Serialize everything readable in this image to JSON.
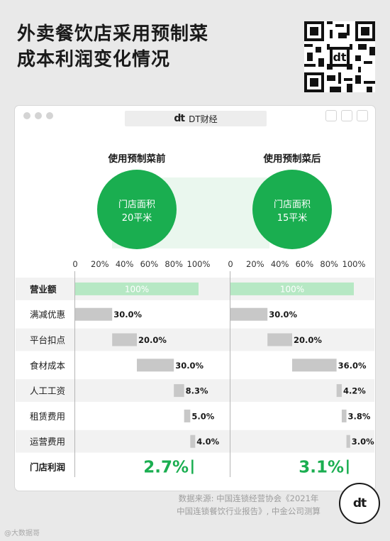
{
  "title_line1": "外卖餐饮店采用预制菜",
  "title_line2": "成本利润变化情况",
  "window_title": "DT财经",
  "logo_text": "dt",
  "source_line1": "数据来源: 中国连锁经营协会《2021年",
  "source_line2": "中国连锁餐饮行业报告》, 中金公司测算",
  "watermark": "@大数据哥",
  "colors": {
    "green": "#1aae50",
    "green_light": "#b6e8c4",
    "gray_bar": "#c8c8c8",
    "accent_strong": "#1aae50"
  },
  "chart_data": {
    "type": "bar",
    "orientation": "horizontal-waterfall",
    "categories": [
      "营业额",
      "满减优惠",
      "平台扣点",
      "食材成本",
      "人工工资",
      "租赁费用",
      "运营费用",
      "门店利润"
    ],
    "x_ticks": [
      "0",
      "20%",
      "40%",
      "60%",
      "80%",
      "100%"
    ],
    "xlim": [
      0,
      100
    ],
    "panels": [
      {
        "heading": "使用预制菜前",
        "circle_line1": "门店面积",
        "circle_line2": "20平米",
        "values": [
          100,
          30.0,
          20.0,
          30.0,
          8.3,
          5.0,
          4.0,
          2.7
        ],
        "labels": [
          "100%",
          "30.0%",
          "20.0%",
          "30.0%",
          "8.3%",
          "5.0%",
          "4.0%",
          "2.7%"
        ]
      },
      {
        "heading": "使用预制菜后",
        "circle_line1": "门店面积",
        "circle_line2": "15平米",
        "values": [
          100,
          30.0,
          20.0,
          36.0,
          4.2,
          3.8,
          3.0,
          3.1
        ],
        "labels": [
          "100%",
          "30.0%",
          "20.0%",
          "36.0%",
          "4.2%",
          "3.8%",
          "3.0%",
          "3.1%"
        ]
      }
    ]
  }
}
